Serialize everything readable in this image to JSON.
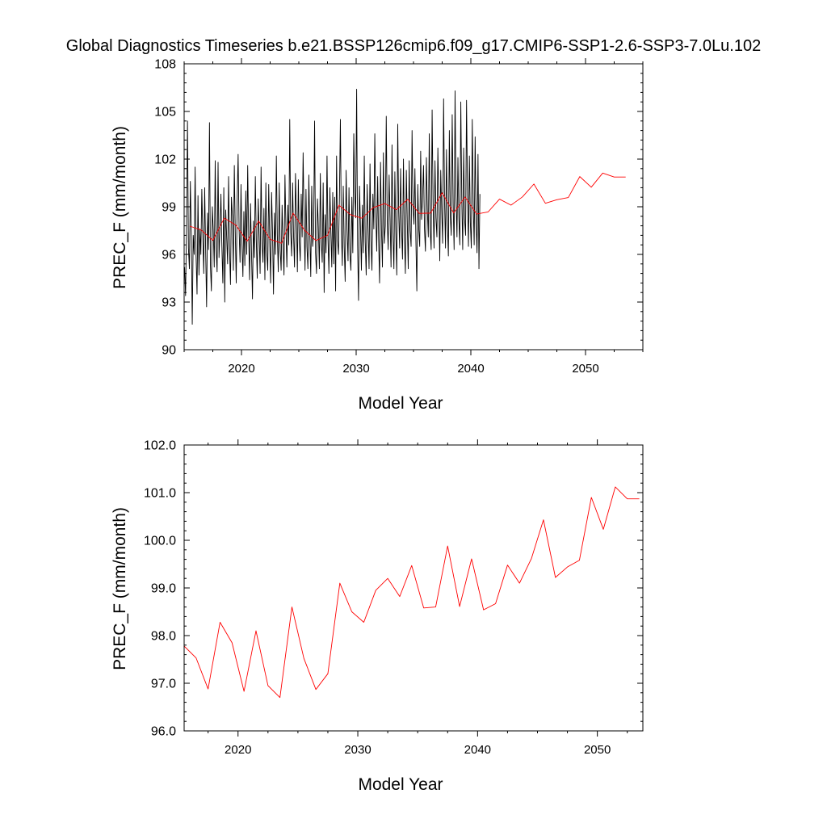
{
  "title": "Global Diagnostics Timeseries b.e21.BSSP126cmip6.f09_g17.CMIP6-SSP1-2.6-SSP3-7.0Lu.102",
  "colors": {
    "monthly": "#000000",
    "annual": "#ff0000",
    "frame": "#000000"
  },
  "chart_data": [
    {
      "type": "line",
      "title": "Global Diagnostics Timeseries b.e21.BSSP126cmip6.f09_g17.CMIP6-SSP1-2.6-SSP3-7.0Lu.102",
      "xlabel": "Model Year",
      "ylabel": "PREC_F (mm/month)",
      "xlim": [
        2015.0,
        2055.0
      ],
      "ylim": [
        90,
        108
      ],
      "xticks": [
        2020,
        2030,
        2040,
        2050
      ],
      "xtick_labels": [
        "2020",
        "2030",
        "2040",
        "2050"
      ],
      "yticks": [
        90,
        93,
        96,
        99,
        102,
        105,
        108
      ],
      "ytick_labels": [
        "90",
        "93",
        "96",
        "99",
        "102",
        "105",
        "108"
      ],
      "grid": false,
      "series": [
        {
          "color": "#000000",
          "x_start": 2015.042,
          "x_step": 0.08333,
          "values": [
            95.2,
            93.4,
            97.8,
            104.4,
            96.4,
            95.1,
            100.6,
            97.3,
            91.6,
            97.2,
            96.0,
            101.5,
            95.9,
            93.5,
            99.7,
            94.7,
            97.6,
            96.0,
            100.1,
            97.3,
            94.8,
            100.2,
            96.3,
            92.7,
            98.6,
            96.3,
            104.3,
            95.3,
            93.7,
            99.0,
            97.5,
            95.2,
            101.9,
            96.4,
            94.9,
            101.8,
            95.8,
            97.6,
            99.8,
            96.5,
            94.2,
            100.2,
            93.0,
            98.8,
            97.1,
            95.4,
            100.9,
            96.4,
            94.1,
            99.6,
            98.4,
            95.0,
            101.6,
            97.4,
            94.2,
            99.5,
            102.3,
            97.6,
            95.5,
            100.4,
            96.7,
            94.6,
            98.7,
            95.3,
            100.0,
            96.0,
            101.6,
            97.1,
            94.4,
            99.2,
            96.1,
            93.2,
            98.1,
            95.8,
            100.9,
            96.9,
            94.5,
            99.5,
            97.2,
            94.8,
            101.5,
            96.8,
            95.5,
            98.9,
            94.4,
            100.5,
            96.1,
            95.0,
            100.4,
            96.9,
            94.2,
            99.9,
            97.4,
            93.5,
            98.6,
            96.0,
            102.2,
            97.2,
            94.9,
            100.5,
            96.3,
            95.0,
            99.1,
            96.6,
            94.7,
            101.0,
            97.7,
            95.2,
            99.1,
            96.6,
            104.5,
            97.4,
            95.9,
            100.5,
            97.2,
            95.2,
            101.1,
            98.4,
            94.9,
            100.7,
            96.8,
            95.6,
            99.8,
            97.1,
            102.4,
            98.2,
            95.0,
            100.1,
            96.5,
            95.1,
            101.0,
            97.2,
            94.6,
            100.3,
            96.5,
            97.4,
            104.4,
            96.1,
            94.8,
            99.5,
            97.6,
            95.1,
            101.1,
            96.8,
            95.5,
            100.5,
            93.6,
            98.5,
            96.1,
            102.2,
            97.0,
            94.8,
            100.2,
            97.5,
            95.2,
            99.9,
            95.4,
            99.6,
            93.7,
            102.2,
            96.9,
            96.0,
            99.6,
            104.5,
            97.5,
            95.3,
            100.3,
            96.5,
            94.3,
            101.3,
            97.6,
            95.6,
            100.2,
            96.0,
            95.0,
            99.6,
            96.1,
            103.6,
            99.9,
            98.3,
            106.4,
            96.6,
            93.1,
            100.3,
            97.8,
            95.0,
            99.1,
            96.1,
            102.2,
            96.8,
            94.7,
            100.4,
            97.6,
            95.1,
            101.7,
            96.9,
            95.0,
            99.8,
            97.6,
            103.6,
            98.7,
            96.2,
            100.9,
            97.0,
            94.2,
            101.8,
            97.6,
            95.2,
            102.4,
            96.7,
            97.8,
            104.7,
            98.2,
            96.3,
            101.0,
            98.3,
            95.2,
            102.9,
            97.4,
            95.1,
            101.2,
            97.4,
            94.7,
            104.2,
            98.7,
            96.4,
            101.4,
            97.7,
            95.7,
            102.0,
            97.1,
            94.8,
            101.3,
            98.0,
            95.1,
            101.9,
            97.5,
            96.5,
            103.8,
            99.0,
            97.9,
            101.4,
            96.9,
            93.7,
            100.4,
            97.6,
            96.5,
            102.5,
            98.2,
            99.6,
            101.6,
            97.6,
            96.2,
            102.1,
            98.8,
            97.1,
            103.6,
            97.5,
            96.3,
            105.1,
            99.2,
            96.4,
            101.9,
            98.3,
            97.1,
            102.7,
            99.4,
            95.6,
            101.3,
            98.8,
            96.7,
            105.8,
            99.4,
            96.4,
            102.6,
            98.0,
            95.9,
            103.8,
            98.4,
            97.2,
            104.8,
            99.2,
            96.3,
            106.3,
            99.6,
            97.1,
            102.1,
            98.2,
            96.6,
            105.6,
            99.6,
            96.3,
            102.7,
            98.2,
            97.2,
            105.7,
            99.8,
            96.5,
            102.2,
            98.0,
            96.4,
            104.5,
            99.2,
            96.6,
            103.4,
            98.1,
            96.1,
            102.3,
            95.1,
            99.8
          ]
        },
        {
          "color": "#ff0000",
          "x": [
            2015.5,
            2016.5,
            2017.5,
            2018.5,
            2019.5,
            2020.5,
            2021.5,
            2022.5,
            2023.5,
            2024.5,
            2025.5,
            2026.5,
            2027.5,
            2028.5,
            2029.5,
            2030.5,
            2031.5,
            2032.5,
            2033.5,
            2034.5,
            2035.5,
            2036.5,
            2037.5,
            2038.5,
            2039.5,
            2040.5,
            2041.5,
            2042.5,
            2043.5,
            2044.5,
            2045.5,
            2046.5,
            2047.5,
            2048.5,
            2049.5,
            2050.5,
            2051.5,
            2052.5,
            2053.5
          ],
          "values": [
            97.78,
            97.53,
            96.88,
            98.28,
            97.85,
            96.83,
            98.1,
            96.95,
            96.7,
            98.6,
            97.52,
            96.87,
            97.2,
            99.1,
            98.5,
            98.28,
            98.95,
            99.2,
            98.82,
            99.47,
            98.58,
            98.6,
            99.88,
            98.61,
            99.61,
            98.54,
            98.67,
            99.48,
            99.1,
            99.62,
            100.43,
            99.22,
            99.44,
            99.58,
            100.9,
            100.23,
            101.12,
            100.87,
            100.87
          ]
        }
      ]
    },
    {
      "type": "line",
      "title": "",
      "xlabel": "Model Year",
      "ylabel": "PREC_F (mm/month)",
      "xlim": [
        2015.5,
        2053.8
      ],
      "ylim": [
        96.0,
        102.0
      ],
      "xticks": [
        2020,
        2030,
        2040,
        2050
      ],
      "xtick_labels": [
        "2020",
        "2030",
        "2040",
        "2050"
      ],
      "yticks": [
        96.0,
        97.0,
        98.0,
        99.0,
        100.0,
        101.0,
        102.0
      ],
      "ytick_labels": [
        "96.0",
        "97.0",
        "98.0",
        "99.0",
        "100.0",
        "101.0",
        "102.0"
      ],
      "grid": false,
      "series": [
        {
          "color": "#ff0000",
          "x": [
            2015.5,
            2016.5,
            2017.5,
            2018.5,
            2019.5,
            2020.5,
            2021.5,
            2022.5,
            2023.5,
            2024.5,
            2025.5,
            2026.5,
            2027.5,
            2028.5,
            2029.5,
            2030.5,
            2031.5,
            2032.5,
            2033.5,
            2034.5,
            2035.5,
            2036.5,
            2037.5,
            2038.5,
            2039.5,
            2040.5,
            2041.5,
            2042.5,
            2043.5,
            2044.5,
            2045.5,
            2046.5,
            2047.5,
            2048.5,
            2049.5,
            2050.5,
            2051.5,
            2052.5,
            2053.5
          ],
          "values": [
            97.78,
            97.53,
            96.88,
            98.28,
            97.85,
            96.83,
            98.1,
            96.95,
            96.7,
            98.6,
            97.52,
            96.87,
            97.2,
            99.1,
            98.5,
            98.28,
            98.95,
            99.2,
            98.82,
            99.47,
            98.58,
            98.6,
            99.88,
            98.61,
            99.61,
            98.54,
            98.67,
            99.48,
            99.1,
            99.62,
            100.43,
            99.22,
            99.44,
            99.58,
            100.9,
            100.23,
            101.12,
            100.87,
            100.87
          ]
        }
      ]
    }
  ]
}
